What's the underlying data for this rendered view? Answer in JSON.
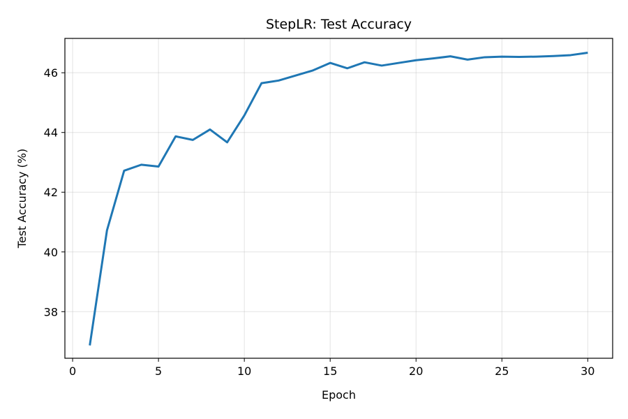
{
  "chart_data": {
    "type": "line",
    "title": "StepLR: Test Accuracy",
    "xlabel": "Epoch",
    "ylabel": "Test Accuracy (%)",
    "xlim": [
      -0.45,
      31.45
    ],
    "ylim": [
      36.44,
      47.15
    ],
    "xticks": [
      0,
      5,
      10,
      15,
      20,
      25,
      30
    ],
    "yticks": [
      38,
      40,
      42,
      44,
      46
    ],
    "grid": true,
    "legend": "none",
    "series": [
      {
        "color": "#1f77b4",
        "x": [
          1,
          2,
          3,
          4,
          5,
          6,
          7,
          8,
          9,
          10,
          11,
          12,
          13,
          14,
          15,
          16,
          17,
          18,
          19,
          20,
          21,
          22,
          23,
          24,
          25,
          26,
          27,
          28,
          29,
          30
        ],
        "y": [
          36.87,
          40.72,
          42.72,
          42.92,
          42.86,
          43.87,
          43.75,
          44.1,
          43.67,
          44.57,
          45.65,
          45.74,
          45.91,
          46.08,
          46.33,
          46.15,
          46.35,
          46.24,
          46.33,
          46.42,
          46.48,
          46.55,
          46.44,
          46.52,
          46.54,
          46.53,
          46.54,
          46.56,
          46.59,
          46.67
        ]
      }
    ]
  },
  "colors": {
    "line": "#1f77b4",
    "grid": "#b0b0b0",
    "axes": "#000000",
    "background": "#ffffff"
  }
}
